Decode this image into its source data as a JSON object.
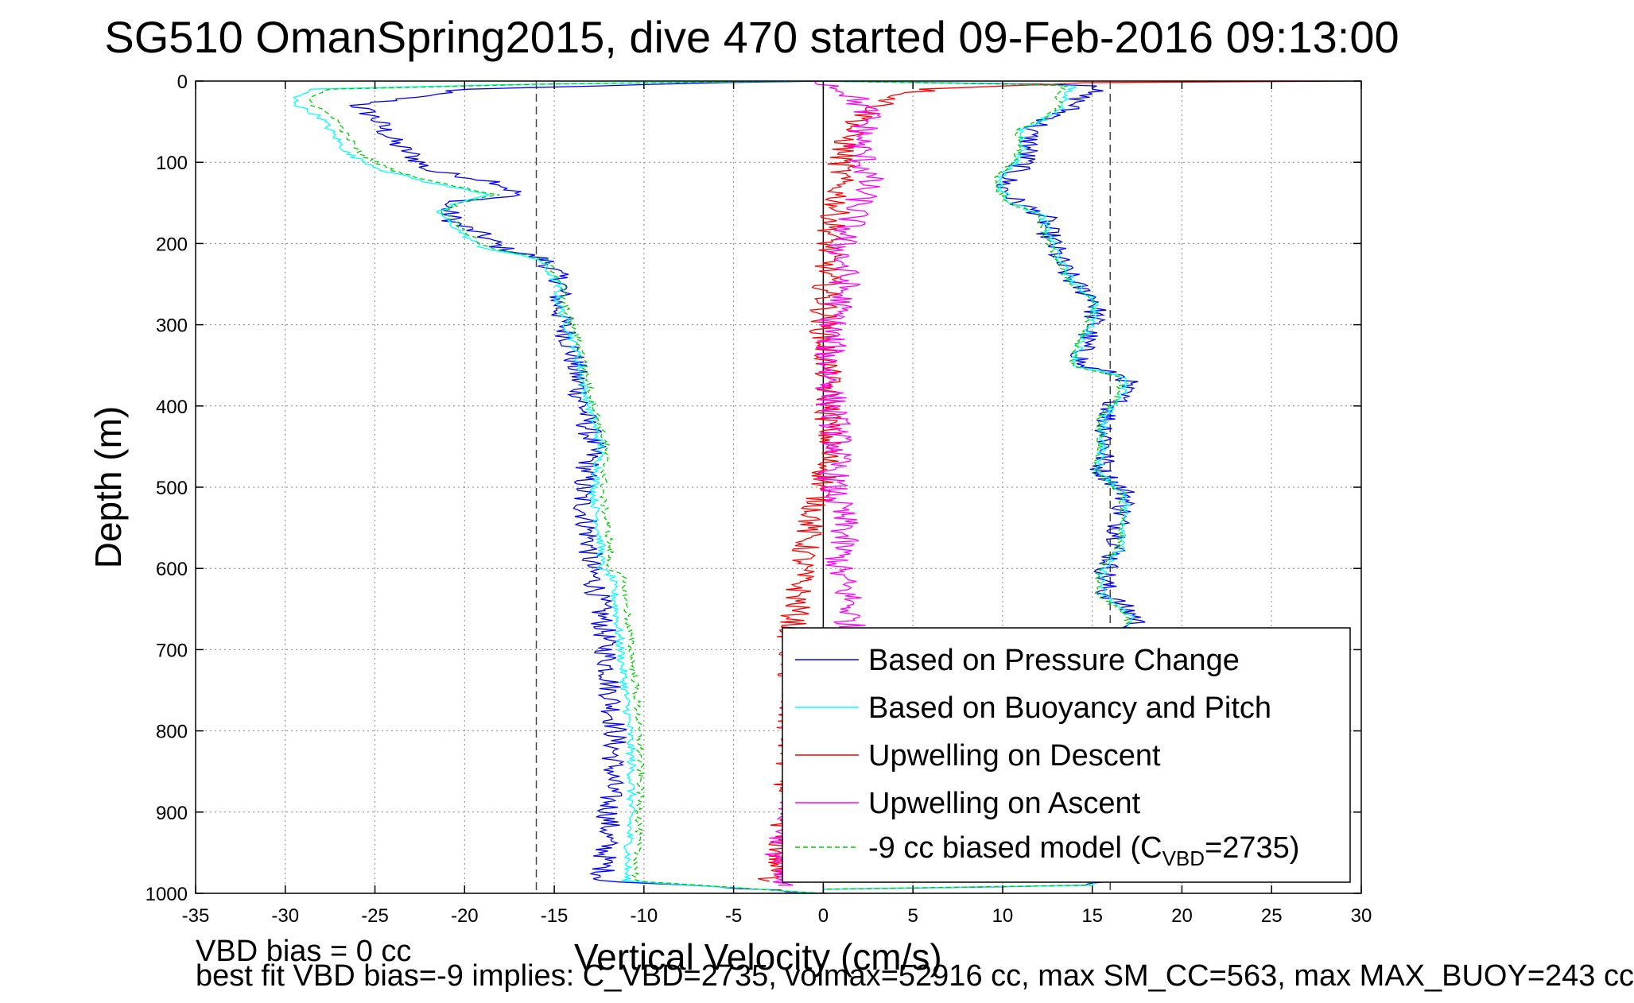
{
  "chart_data": {
    "type": "line",
    "title": "SG510 OmanSpring2015, dive 470 started 09-Feb-2016 09:13:00",
    "xlabel": "Vertical Velocity (cm/s)",
    "ylabel": "Depth (m)",
    "xlim": [
      -35,
      30
    ],
    "ylim": [
      1000,
      0
    ],
    "y_reversed": true,
    "grid": true,
    "legend_position": "lower-right",
    "xticks": [
      -35,
      -30,
      -25,
      -20,
      -15,
      -10,
      -5,
      0,
      5,
      10,
      15,
      20,
      25,
      30
    ],
    "yticks": [
      0,
      100,
      200,
      300,
      400,
      500,
      600,
      700,
      800,
      900,
      1000
    ],
    "reference_lines_x": [
      -16,
      0,
      16
    ],
    "series": [
      {
        "name": "Based on Pressure Change",
        "color": "#0000ff",
        "legend_text": "Based on Pressure Change",
        "segments": [
          {
            "depth": [
              0,
              3,
              10,
              20,
              30,
              45,
              60,
              75,
              90,
              110,
              125,
              140,
              150,
              160,
              175,
              190,
              205,
              220,
              235,
              250,
              270,
              300,
              330,
              360,
              390,
              420,
              450,
              480,
              510,
              540,
              570,
              600,
              610,
              640,
              680,
              720,
              760,
              800,
              840,
              880,
              920,
              960,
              985,
              993,
              1000
            ],
            "velocity": [
              0,
              -8,
              -20,
              -23,
              -26,
              -25,
              -24.5,
              -24,
              -23,
              -22,
              -18,
              -17,
              -21,
              -21,
              -20.5,
              -19,
              -18,
              -15.5,
              -15,
              -14.5,
              -14.8,
              -14.5,
              -14,
              -13.8,
              -13.5,
              -13.2,
              -12.8,
              -13.2,
              -13.5,
              -13.2,
              -13,
              -13,
              -12.8,
              -12.5,
              -12.2,
              -12,
              -11.8,
              -11.6,
              -11.7,
              -11.9,
              -12,
              -12.2,
              -12.3,
              -5,
              0
            ]
          },
          {
            "depth": [
              0,
              5,
              15,
              30,
              45,
              60,
              80,
              100,
              115,
              130,
              150,
              165,
              185,
              200,
              225,
              250,
              270,
              300,
              325,
              350,
              365,
              390,
              415,
              450,
              480,
              510,
              540,
              570,
              600,
              630,
              660,
              990,
              995
            ],
            "velocity": [
              0,
              16,
              14.5,
              14,
              12.8,
              11.5,
              11.5,
              11.2,
              10.5,
              10,
              10.8,
              12.3,
              12.5,
              12.8,
              13.2,
              14,
              15.3,
              15,
              14.5,
              14.3,
              17,
              16.5,
              15.8,
              15.8,
              15.5,
              17,
              16.5,
              16.5,
              15.8,
              15.7,
              17.5,
              15,
              0
            ]
          }
        ]
      },
      {
        "name": "Based on Buoyancy and Pitch",
        "color": "#00ffff",
        "legend_text": "Based on Buoyancy and Pitch",
        "segments": [
          {
            "depth": [
              0,
              3,
              10,
              20,
              30,
              45,
              60,
              75,
              90,
              110,
              125,
              140,
              150,
              160,
              175,
              190,
              205,
              220,
              235,
              250,
              270,
              300,
              330,
              360,
              390,
              420,
              450,
              480,
              510,
              540,
              570,
              600,
              610,
              640,
              680,
              720,
              760,
              800,
              840,
              880,
              920,
              960,
              985,
              993,
              1000
            ],
            "velocity": [
              0,
              -15,
              -28.5,
              -29.5,
              -29.3,
              -28,
              -27.5,
              -27,
              -26.5,
              -24.5,
              -22,
              -18.5,
              -20.5,
              -21.5,
              -20.8,
              -20,
              -19,
              -15.8,
              -15.3,
              -14.8,
              -14.8,
              -14.3,
              -13.8,
              -13.5,
              -13.2,
              -12.8,
              -12.4,
              -12.6,
              -12.8,
              -12.6,
              -12.4,
              -12.4,
              -11.8,
              -11.6,
              -11.4,
              -11.2,
              -11,
              -10.8,
              -10.7,
              -10.7,
              -10.8,
              -10.9,
              -11,
              -5,
              0
            ]
          },
          {
            "depth": [
              0,
              5,
              15,
              30,
              45,
              60,
              80,
              100,
              115,
              130,
              150,
              165,
              185,
              200,
              225,
              250,
              270,
              300,
              325,
              350,
              365,
              390,
              415,
              450,
              480,
              510,
              540,
              570,
              600,
              630,
              660,
              990,
              995
            ],
            "velocity": [
              0,
              14,
              13.5,
              13.5,
              12.5,
              11,
              11.2,
              10.8,
              10,
              9.8,
              10.5,
              12.2,
              12.5,
              12.8,
              13.3,
              14,
              15.2,
              15,
              14.3,
              14,
              16.8,
              16.6,
              15.6,
              15.6,
              15.3,
              16.9,
              16.8,
              16.8,
              15.6,
              15.5,
              17.2,
              15,
              0
            ]
          }
        ]
      },
      {
        "name": "Upwelling on Descent",
        "color": "#ff0000",
        "legend_text": "Upwelling on Descent",
        "depth": [
          0,
          2,
          10,
          20,
          40,
          60,
          80,
          100,
          150,
          200,
          250,
          300,
          350,
          400,
          450,
          500,
          550,
          600,
          650,
          680,
          890,
          930,
          960,
          985
        ],
        "velocity": [
          30,
          15,
          6,
          4,
          2.5,
          1.5,
          1.2,
          1,
          0.8,
          0.3,
          0.2,
          0,
          0.2,
          0.3,
          0.3,
          0,
          -0.8,
          -1.2,
          -1.5,
          -1.8,
          -2,
          -2.3,
          -2.5,
          -3
        ]
      },
      {
        "name": "Upwelling on Ascent",
        "color": "#ff00ff",
        "legend_text": "Upwelling on Ascent",
        "depth": [
          0,
          15,
          40,
          80,
          120,
          150,
          200,
          250,
          300,
          350,
          400,
          450,
          500,
          550,
          600,
          640,
          670,
          880,
          920,
          960,
          990
        ],
        "velocity": [
          0,
          1.5,
          2.5,
          2,
          2.5,
          2,
          1,
          1.2,
          0.5,
          0.3,
          0.5,
          0.8,
          0.5,
          1.2,
          0.8,
          1.5,
          1.5,
          -1.5,
          -2,
          -2.5,
          -2.5
        ]
      },
      {
        "name": "-9 cc biased model",
        "color": "#00cc00",
        "dashed": true,
        "legend_text": "-9 cc biased model (C",
        "legend_sub": "VBD",
        "legend_suffix": "=2735)",
        "segments": [
          {
            "depth": [
              0,
              3,
              10,
              20,
              30,
              45,
              60,
              75,
              90,
              110,
              125,
              140,
              150,
              160,
              175,
              190,
              205,
              220,
              235,
              250,
              270,
              300,
              330,
              360,
              390,
              420,
              450,
              480,
              510,
              540,
              570,
              600,
              610,
              640,
              680,
              720,
              760,
              800,
              840,
              880,
              920,
              960,
              985,
              993,
              1000
            ],
            "velocity": [
              0,
              -14,
              -27.5,
              -28.5,
              -28.5,
              -27.2,
              -26.8,
              -26.3,
              -25.8,
              -24,
              -21.5,
              -18.2,
              -20.2,
              -21.2,
              -20.5,
              -19.7,
              -18.7,
              -15.5,
              -15,
              -14.5,
              -14.5,
              -14,
              -13.5,
              -13.2,
              -12.9,
              -12.5,
              -12.1,
              -12.2,
              -12.3,
              -12.1,
              -11.9,
              -11.9,
              -11.2,
              -11,
              -10.8,
              -10.6,
              -10.4,
              -10.3,
              -10.2,
              -10.2,
              -10.3,
              -10.4,
              -10.5,
              -5,
              0
            ]
          },
          {
            "depth": [
              0,
              5,
              15,
              30,
              45,
              60,
              80,
              100,
              115,
              130,
              150,
              165,
              185,
              200,
              225,
              250,
              270,
              300,
              325,
              350,
              365,
              390,
              415,
              450,
              480,
              510,
              540,
              570,
              600,
              630,
              660,
              990,
              995
            ],
            "velocity": [
              0,
              13.5,
              13,
              13.3,
              12.3,
              10.8,
              11,
              10.6,
              9.8,
              9.6,
              10.3,
              12,
              12.3,
              12.6,
              13.1,
              13.8,
              15,
              14.8,
              14.1,
              13.8,
              16.6,
              16.4,
              15.4,
              15.4,
              15.1,
              16.7,
              16.6,
              16.6,
              15.4,
              15.3,
              17,
              14.8,
              0
            ]
          }
        ]
      }
    ]
  },
  "footer": {
    "line1": "VBD bias = 0 cc",
    "line2": "best fit VBD bias=-9 implies: C_VBD=2735, volmax=52916 cc, max SM_CC=563, max MAX_BUOY=243 cc"
  }
}
